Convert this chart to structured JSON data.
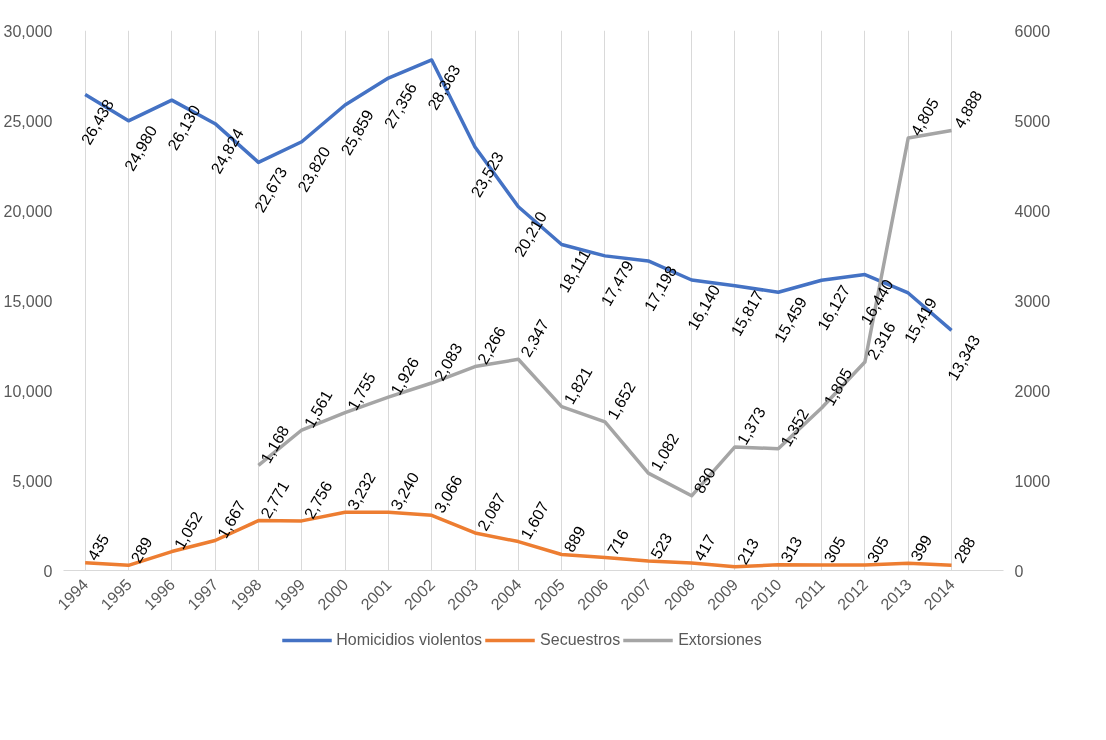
{
  "chart_data": {
    "type": "line",
    "categories": [
      "1994",
      "1995",
      "1996",
      "1997",
      "1998",
      "1999",
      "2000",
      "2001",
      "2002",
      "2003",
      "2004",
      "2005",
      "2006",
      "2007",
      "2008",
      "2009",
      "2010",
      "2011",
      "2012",
      "2013",
      "2014"
    ],
    "series": [
      {
        "name": "Homicidios violentos",
        "color": "#4472c4",
        "values": [
          26438,
          24980,
          26130,
          24824,
          22673,
          23820,
          25859,
          27356,
          28363,
          23523,
          20210,
          18111,
          17479,
          17198,
          16140,
          15817,
          15459,
          16127,
          16440,
          15419,
          13343
        ],
        "value_labels": [
          "26,438",
          "24,980",
          "26,130",
          "24,824",
          "22,673",
          "23,820",
          "25,859",
          "27,356",
          "28,363",
          "23,523",
          "20,210",
          "18,111",
          "17,479",
          "17,198",
          "16,140",
          "15,817",
          "15,459",
          "16,127",
          "16,440",
          "15,419",
          "13,343"
        ]
      },
      {
        "name": "Secuestros",
        "color": "#ed7d31",
        "values": [
          435,
          289,
          1052,
          1667,
          2771,
          2756,
          3232,
          3240,
          3066,
          2087,
          1607,
          889,
          716,
          523,
          417,
          213,
          313,
          305,
          305,
          399,
          288
        ],
        "value_labels": [
          "435",
          "289",
          "1,052",
          "1,667",
          "2,771",
          "2,756",
          "3,232",
          "3,240",
          "3,066",
          "2,087",
          "1,607",
          "889",
          "716",
          "523",
          "417",
          "213",
          "313",
          "305",
          "305",
          "399",
          "288"
        ]
      },
      {
        "name": "Extorsiones",
        "color": "#a5a5a5",
        "axis": "y2",
        "values": [
          null,
          null,
          null,
          null,
          1168,
          1561,
          1755,
          1926,
          2083,
          2266,
          2347,
          1821,
          1652,
          1082,
          830,
          1373,
          1352,
          1805,
          2316,
          4805,
          4888
        ],
        "value_labels": [
          null,
          null,
          null,
          null,
          "1,168",
          "1,561",
          "1,755",
          "1,926",
          "2,083",
          "2,266",
          "2,347",
          "1,821",
          "1,652",
          "1,082",
          "830",
          "1,373",
          "1,352",
          "1,805",
          "2,316",
          "4,805",
          "4,888"
        ]
      }
    ],
    "ylim": [
      0,
      30000
    ],
    "yticks": [
      0,
      {
        "value": 5000,
        "label": "5,000"
      },
      {
        "value": 10000,
        "label": "10,000"
      },
      {
        "value": 15000,
        "label": "15,000"
      },
      {
        "value": 20000,
        "label": "20,000"
      },
      {
        "value": 25000,
        "label": "25,000"
      },
      {
        "value": 30000,
        "label": "30,000"
      }
    ],
    "y2lim": [
      0,
      6000
    ],
    "y2ticks": [
      0,
      1000,
      2000,
      3000,
      4000,
      5000,
      6000
    ],
    "grid": "x",
    "legend": "bottom",
    "marker": "none",
    "line_style": "solid",
    "data_labels": true
  }
}
